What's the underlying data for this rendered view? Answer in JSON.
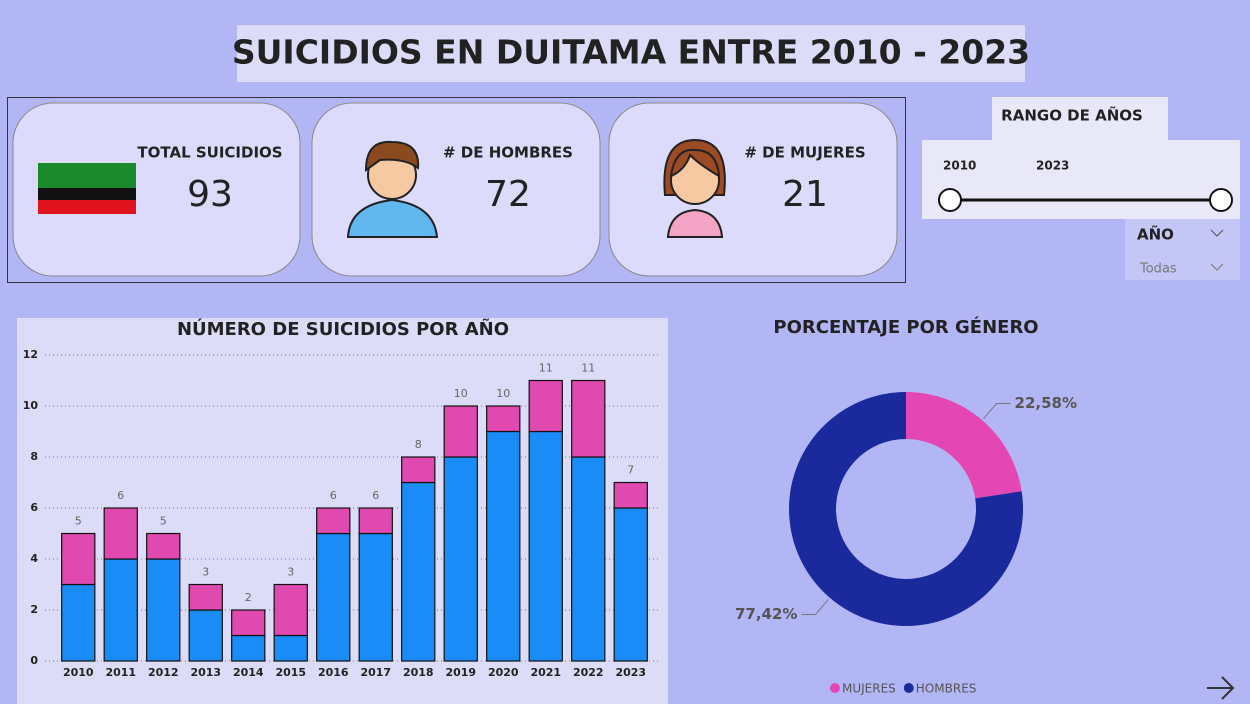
{
  "header": {
    "title": "SUICIDIOS EN DUITAMA ENTRE 2010 - 2023"
  },
  "cards": [
    {
      "label": "TOTAL SUICIDIOS",
      "value": 93
    },
    {
      "label": "# DE HOMBRES",
      "value": 72
    },
    {
      "label": "# DE MUJERES",
      "value": 21
    }
  ],
  "slicer": {
    "title": "RANGO DE AÑOS",
    "range": [
      2010,
      2023
    ],
    "dropdown": {
      "label": "AÑO",
      "value": "Todas"
    }
  },
  "chart_data": [
    {
      "type": "bar",
      "stacked": true,
      "title": "NÚMERO DE SUICIDIOS POR AÑO",
      "categories": [
        "2010",
        "2011",
        "2012",
        "2013",
        "2014",
        "2015",
        "2016",
        "2017",
        "2018",
        "2019",
        "2020",
        "2021",
        "2022",
        "2023"
      ],
      "series": [
        {
          "color": "#1a8cf7",
          "values": [
            3,
            4,
            4,
            2,
            1,
            1,
            5,
            5,
            7,
            8,
            9,
            9,
            8,
            6
          ]
        },
        {
          "color": "#e04ab0",
          "values": [
            2,
            2,
            1,
            1,
            1,
            2,
            1,
            1,
            1,
            2,
            1,
            2,
            3,
            1
          ]
        }
      ],
      "totals": [
        5,
        6,
        5,
        3,
        2,
        3,
        6,
        6,
        8,
        10,
        10,
        11,
        11,
        7
      ],
      "ylim": [
        0,
        12
      ],
      "yticks": [
        0,
        2,
        4,
        6,
        8,
        10,
        12
      ],
      "grid": true
    },
    {
      "type": "donut",
      "title": "PORCENTAJE POR GÉNERO",
      "categories": [
        "MUJERES",
        "HOMBRES"
      ],
      "values": [
        22.58,
        77.42
      ],
      "value_labels": [
        "22,58%",
        "77,42%"
      ],
      "colors": [
        "#e447b4",
        "#1a2a9c"
      ],
      "legend": "bottom"
    }
  ]
}
